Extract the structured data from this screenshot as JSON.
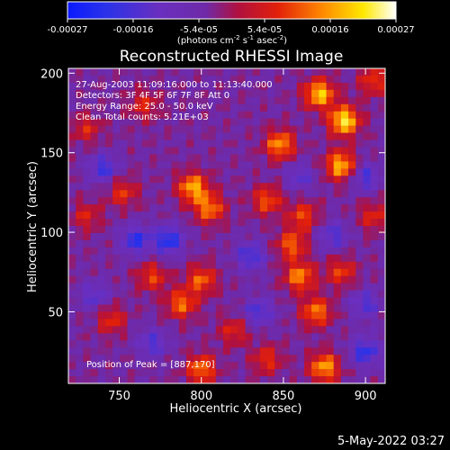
{
  "chart_data": {
    "type": "heatmap",
    "title": "Reconstructed RHESSI Image",
    "xlabel": "Heliocentric X (arcsec)",
    "ylabel": "Heliocentric Y (arcsec)",
    "x_ticks": [
      750,
      800,
      850,
      900
    ],
    "y_ticks": [
      50,
      100,
      150,
      200
    ],
    "xlim": [
      719,
      912
    ],
    "ylim": [
      5,
      203
    ],
    "colorbar": {
      "colormap": "blue-purple-red-yellow-white",
      "range": [
        -0.00027,
        0.00027
      ],
      "tick_labels": [
        "-0.00027",
        "-0.00016",
        "-5.4e-05",
        "5.4e-05",
        "0.00016",
        "0.00027"
      ],
      "unit_main": "(photons cm",
      "unit_exp1": "-2",
      "unit_s": " s",
      "unit_exp2": "-1",
      "unit_asec": " asec",
      "unit_exp3": "-2",
      "unit_close": ")"
    },
    "annotations": {
      "line1": "27-Aug-2003 11:09:16.000 to 11:13:40.000",
      "line2": "Detectors: 3F 4F 5F 6F 7F 8F  Att 0",
      "line3": "Energy Range: 25.0 - 50.0 keV",
      "line4": "Clean    Total counts: 5.21E+03",
      "peak": "Position of Peak = [887,170]"
    },
    "peak_position": [
      887,
      170
    ],
    "grid_size": [
      43,
      44
    ],
    "hot_spots": [
      {
        "x": 887,
        "y": 170,
        "value": 0.00027
      },
      {
        "x": 872,
        "y": 187,
        "value": 0.00024
      },
      {
        "x": 885,
        "y": 142,
        "value": 0.00023
      },
      {
        "x": 848,
        "y": 155,
        "value": 0.0002
      },
      {
        "x": 795,
        "y": 128,
        "value": 0.00022
      },
      {
        "x": 805,
        "y": 115,
        "value": 0.00018
      },
      {
        "x": 840,
        "y": 120,
        "value": 0.00015
      },
      {
        "x": 862,
        "y": 110,
        "value": 0.00014
      },
      {
        "x": 855,
        "y": 92,
        "value": 0.00016
      },
      {
        "x": 860,
        "y": 72,
        "value": 0.00019
      },
      {
        "x": 870,
        "y": 50,
        "value": 0.00018
      },
      {
        "x": 875,
        "y": 15,
        "value": 0.00021
      },
      {
        "x": 885,
        "y": 75,
        "value": 0.00013
      },
      {
        "x": 800,
        "y": 70,
        "value": 0.00016
      },
      {
        "x": 788,
        "y": 55,
        "value": 0.00017
      },
      {
        "x": 770,
        "y": 72,
        "value": 0.00013
      },
      {
        "x": 800,
        "y": 14,
        "value": 0.00018
      },
      {
        "x": 745,
        "y": 45,
        "value": 0.00012
      },
      {
        "x": 752,
        "y": 125,
        "value": 0.00012
      },
      {
        "x": 820,
        "y": 38,
        "value": 0.00011
      },
      {
        "x": 765,
        "y": 180,
        "value": 0.00011
      },
      {
        "x": 730,
        "y": 165,
        "value": 0.0001
      },
      {
        "x": 730,
        "y": 110,
        "value": 0.0001
      },
      {
        "x": 905,
        "y": 195,
        "value": 0.00013
      },
      {
        "x": 905,
        "y": 110,
        "value": 0.00011
      },
      {
        "x": 840,
        "y": 20,
        "value": 0.00012
      }
    ],
    "cold_spots": [
      {
        "x": 780,
        "y": 95,
        "value": -0.00018
      },
      {
        "x": 760,
        "y": 95,
        "value": -0.00016
      },
      {
        "x": 740,
        "y": 140,
        "value": -0.00014
      },
      {
        "x": 830,
        "y": 85,
        "value": -0.00014
      },
      {
        "x": 900,
        "y": 25,
        "value": -0.00016
      },
      {
        "x": 835,
        "y": 50,
        "value": -0.00013
      },
      {
        "x": 900,
        "y": 135,
        "value": -0.00013
      },
      {
        "x": 880,
        "y": 98,
        "value": -0.00012
      },
      {
        "x": 770,
        "y": 30,
        "value": -0.00012
      },
      {
        "x": 735,
        "y": 60,
        "value": -0.00011
      },
      {
        "x": 900,
        "y": 55,
        "value": -0.00012
      },
      {
        "x": 860,
        "y": 135,
        "value": -0.0001
      }
    ]
  },
  "footer": {
    "date": "5-May-2022 03:27"
  }
}
